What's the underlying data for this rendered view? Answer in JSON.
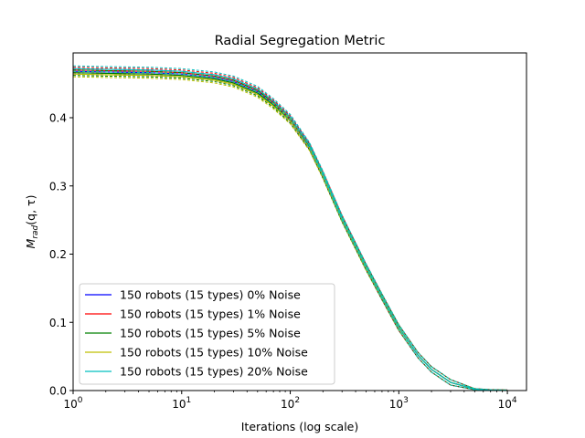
{
  "chart_data": {
    "type": "line",
    "title": "Radial Segregation Metric",
    "xlabel": "Iterations (log scale)",
    "ylabel_base": "M",
    "ylabel_sub": "rad",
    "ylabel_args": "(q, τ)",
    "xscale": "log",
    "xlim": [
      1,
      15000
    ],
    "ylim": [
      0,
      0.495
    ],
    "xticks": [
      {
        "value": 1,
        "base": "10",
        "exp": "0"
      },
      {
        "value": 10,
        "base": "10",
        "exp": "1"
      },
      {
        "value": 100,
        "base": "10",
        "exp": "2"
      },
      {
        "value": 1000,
        "base": "10",
        "exp": "3"
      },
      {
        "value": 10000,
        "base": "10",
        "exp": "4"
      }
    ],
    "yticks": [
      {
        "value": 0.0,
        "label": "0.0"
      },
      {
        "value": 0.1,
        "label": "0.1"
      },
      {
        "value": 0.2,
        "label": "0.2"
      },
      {
        "value": 0.3,
        "label": "0.3"
      },
      {
        "value": 0.4,
        "label": "0.4"
      }
    ],
    "x": [
      1,
      2,
      5,
      10,
      20,
      30,
      50,
      70,
      100,
      150,
      200,
      300,
      500,
      700,
      1000,
      1500,
      2000,
      3000,
      5000,
      7000,
      10000
    ],
    "series": [
      {
        "name": "150 robots (15 types) 0% Noise",
        "color": "#0000ff",
        "band": 0.004,
        "values": [
          0.468,
          0.467,
          0.466,
          0.464,
          0.459,
          0.453,
          0.438,
          0.421,
          0.398,
          0.358,
          0.316,
          0.252,
          0.181,
          0.137,
          0.092,
          0.052,
          0.031,
          0.012,
          0.002,
          0.0005,
          0.0
        ]
      },
      {
        "name": "150 robots (15 types) 1% Noise",
        "color": "#ff0000",
        "band": 0.004,
        "values": [
          0.47,
          0.469,
          0.468,
          0.466,
          0.461,
          0.455,
          0.44,
          0.422,
          0.399,
          0.359,
          0.317,
          0.253,
          0.181,
          0.137,
          0.092,
          0.052,
          0.031,
          0.012,
          0.002,
          0.0005,
          0.0
        ]
      },
      {
        "name": "150 robots (15 types) 5% Noise",
        "color": "#008000",
        "band": 0.004,
        "values": [
          0.466,
          0.465,
          0.464,
          0.462,
          0.457,
          0.451,
          0.436,
          0.419,
          0.396,
          0.357,
          0.315,
          0.251,
          0.18,
          0.137,
          0.092,
          0.052,
          0.031,
          0.012,
          0.002,
          0.0005,
          0.0
        ]
      },
      {
        "name": "150 robots (15 types) 10% Noise",
        "color": "#bfbf00",
        "band": 0.004,
        "values": [
          0.464,
          0.463,
          0.462,
          0.46,
          0.455,
          0.449,
          0.434,
          0.417,
          0.395,
          0.356,
          0.315,
          0.251,
          0.18,
          0.137,
          0.092,
          0.052,
          0.031,
          0.012,
          0.002,
          0.0005,
          0.0
        ]
      },
      {
        "name": "150 robots (15 types) 20% Noise",
        "color": "#00bfbf",
        "band": 0.004,
        "values": [
          0.472,
          0.471,
          0.47,
          0.468,
          0.463,
          0.457,
          0.442,
          0.424,
          0.401,
          0.36,
          0.318,
          0.253,
          0.182,
          0.138,
          0.093,
          0.052,
          0.031,
          0.012,
          0.002,
          0.0005,
          0.0
        ]
      }
    ],
    "legend_position": "lower-left",
    "grid": false
  }
}
